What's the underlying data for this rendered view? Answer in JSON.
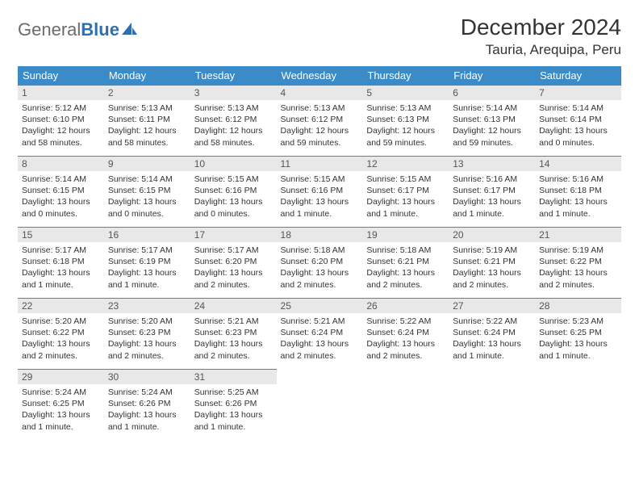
{
  "logo": {
    "text1": "General",
    "text2": "Blue"
  },
  "title": "December 2024",
  "location": "Tauria, Arequipa, Peru",
  "colors": {
    "header_bg": "#3b8bc9",
    "header_text": "#ffffff",
    "daynum_bg": "#e8e8e8",
    "border": "#3b8bc9",
    "logo_gray": "#6b6b6b",
    "logo_blue": "#2f6fb0"
  },
  "weekdays": [
    "Sunday",
    "Monday",
    "Tuesday",
    "Wednesday",
    "Thursday",
    "Friday",
    "Saturday"
  ],
  "days": [
    {
      "n": "1",
      "sunrise": "Sunrise: 5:12 AM",
      "sunset": "Sunset: 6:10 PM",
      "day1": "Daylight: 12 hours",
      "day2": "and 58 minutes."
    },
    {
      "n": "2",
      "sunrise": "Sunrise: 5:13 AM",
      "sunset": "Sunset: 6:11 PM",
      "day1": "Daylight: 12 hours",
      "day2": "and 58 minutes."
    },
    {
      "n": "3",
      "sunrise": "Sunrise: 5:13 AM",
      "sunset": "Sunset: 6:12 PM",
      "day1": "Daylight: 12 hours",
      "day2": "and 58 minutes."
    },
    {
      "n": "4",
      "sunrise": "Sunrise: 5:13 AM",
      "sunset": "Sunset: 6:12 PM",
      "day1": "Daylight: 12 hours",
      "day2": "and 59 minutes."
    },
    {
      "n": "5",
      "sunrise": "Sunrise: 5:13 AM",
      "sunset": "Sunset: 6:13 PM",
      "day1": "Daylight: 12 hours",
      "day2": "and 59 minutes."
    },
    {
      "n": "6",
      "sunrise": "Sunrise: 5:14 AM",
      "sunset": "Sunset: 6:13 PM",
      "day1": "Daylight: 12 hours",
      "day2": "and 59 minutes."
    },
    {
      "n": "7",
      "sunrise": "Sunrise: 5:14 AM",
      "sunset": "Sunset: 6:14 PM",
      "day1": "Daylight: 13 hours",
      "day2": "and 0 minutes."
    },
    {
      "n": "8",
      "sunrise": "Sunrise: 5:14 AM",
      "sunset": "Sunset: 6:15 PM",
      "day1": "Daylight: 13 hours",
      "day2": "and 0 minutes."
    },
    {
      "n": "9",
      "sunrise": "Sunrise: 5:14 AM",
      "sunset": "Sunset: 6:15 PM",
      "day1": "Daylight: 13 hours",
      "day2": "and 0 minutes."
    },
    {
      "n": "10",
      "sunrise": "Sunrise: 5:15 AM",
      "sunset": "Sunset: 6:16 PM",
      "day1": "Daylight: 13 hours",
      "day2": "and 0 minutes."
    },
    {
      "n": "11",
      "sunrise": "Sunrise: 5:15 AM",
      "sunset": "Sunset: 6:16 PM",
      "day1": "Daylight: 13 hours",
      "day2": "and 1 minute."
    },
    {
      "n": "12",
      "sunrise": "Sunrise: 5:15 AM",
      "sunset": "Sunset: 6:17 PM",
      "day1": "Daylight: 13 hours",
      "day2": "and 1 minute."
    },
    {
      "n": "13",
      "sunrise": "Sunrise: 5:16 AM",
      "sunset": "Sunset: 6:17 PM",
      "day1": "Daylight: 13 hours",
      "day2": "and 1 minute."
    },
    {
      "n": "14",
      "sunrise": "Sunrise: 5:16 AM",
      "sunset": "Sunset: 6:18 PM",
      "day1": "Daylight: 13 hours",
      "day2": "and 1 minute."
    },
    {
      "n": "15",
      "sunrise": "Sunrise: 5:17 AM",
      "sunset": "Sunset: 6:18 PM",
      "day1": "Daylight: 13 hours",
      "day2": "and 1 minute."
    },
    {
      "n": "16",
      "sunrise": "Sunrise: 5:17 AM",
      "sunset": "Sunset: 6:19 PM",
      "day1": "Daylight: 13 hours",
      "day2": "and 1 minute."
    },
    {
      "n": "17",
      "sunrise": "Sunrise: 5:17 AM",
      "sunset": "Sunset: 6:20 PM",
      "day1": "Daylight: 13 hours",
      "day2": "and 2 minutes."
    },
    {
      "n": "18",
      "sunrise": "Sunrise: 5:18 AM",
      "sunset": "Sunset: 6:20 PM",
      "day1": "Daylight: 13 hours",
      "day2": "and 2 minutes."
    },
    {
      "n": "19",
      "sunrise": "Sunrise: 5:18 AM",
      "sunset": "Sunset: 6:21 PM",
      "day1": "Daylight: 13 hours",
      "day2": "and 2 minutes."
    },
    {
      "n": "20",
      "sunrise": "Sunrise: 5:19 AM",
      "sunset": "Sunset: 6:21 PM",
      "day1": "Daylight: 13 hours",
      "day2": "and 2 minutes."
    },
    {
      "n": "21",
      "sunrise": "Sunrise: 5:19 AM",
      "sunset": "Sunset: 6:22 PM",
      "day1": "Daylight: 13 hours",
      "day2": "and 2 minutes."
    },
    {
      "n": "22",
      "sunrise": "Sunrise: 5:20 AM",
      "sunset": "Sunset: 6:22 PM",
      "day1": "Daylight: 13 hours",
      "day2": "and 2 minutes."
    },
    {
      "n": "23",
      "sunrise": "Sunrise: 5:20 AM",
      "sunset": "Sunset: 6:23 PM",
      "day1": "Daylight: 13 hours",
      "day2": "and 2 minutes."
    },
    {
      "n": "24",
      "sunrise": "Sunrise: 5:21 AM",
      "sunset": "Sunset: 6:23 PM",
      "day1": "Daylight: 13 hours",
      "day2": "and 2 minutes."
    },
    {
      "n": "25",
      "sunrise": "Sunrise: 5:21 AM",
      "sunset": "Sunset: 6:24 PM",
      "day1": "Daylight: 13 hours",
      "day2": "and 2 minutes."
    },
    {
      "n": "26",
      "sunrise": "Sunrise: 5:22 AM",
      "sunset": "Sunset: 6:24 PM",
      "day1": "Daylight: 13 hours",
      "day2": "and 2 minutes."
    },
    {
      "n": "27",
      "sunrise": "Sunrise: 5:22 AM",
      "sunset": "Sunset: 6:24 PM",
      "day1": "Daylight: 13 hours",
      "day2": "and 1 minute."
    },
    {
      "n": "28",
      "sunrise": "Sunrise: 5:23 AM",
      "sunset": "Sunset: 6:25 PM",
      "day1": "Daylight: 13 hours",
      "day2": "and 1 minute."
    },
    {
      "n": "29",
      "sunrise": "Sunrise: 5:24 AM",
      "sunset": "Sunset: 6:25 PM",
      "day1": "Daylight: 13 hours",
      "day2": "and 1 minute."
    },
    {
      "n": "30",
      "sunrise": "Sunrise: 5:24 AM",
      "sunset": "Sunset: 6:26 PM",
      "day1": "Daylight: 13 hours",
      "day2": "and 1 minute."
    },
    {
      "n": "31",
      "sunrise": "Sunrise: 5:25 AM",
      "sunset": "Sunset: 6:26 PM",
      "day1": "Daylight: 13 hours",
      "day2": "and 1 minute."
    }
  ]
}
